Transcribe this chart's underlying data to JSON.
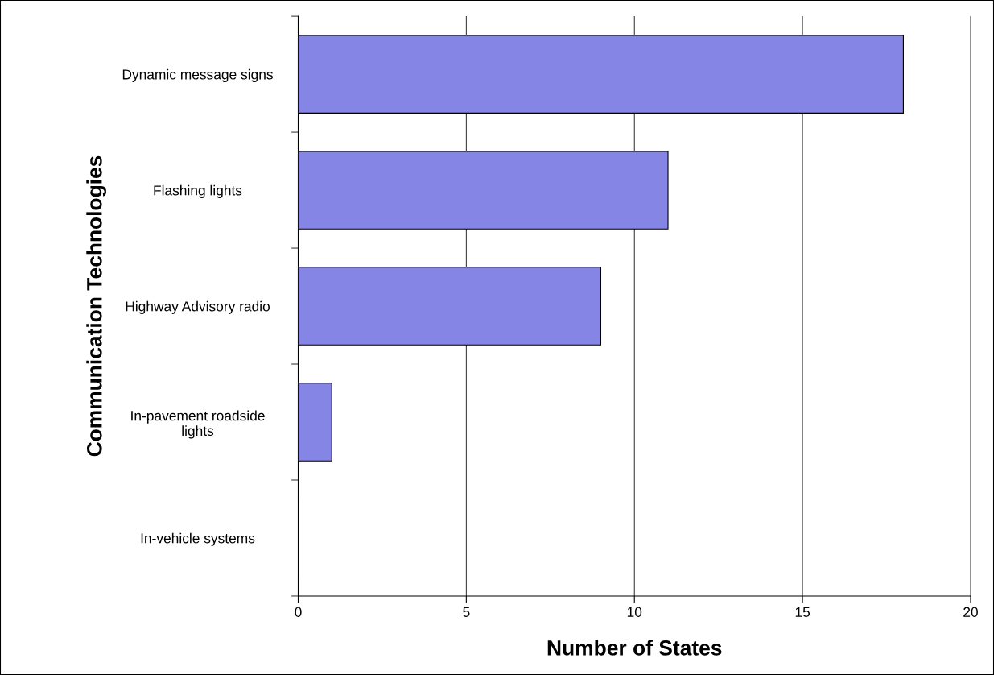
{
  "chart_data": {
    "type": "bar",
    "orientation": "horizontal",
    "xlabel": "Number of States",
    "ylabel": "Communication Technologies",
    "categories": [
      "Dynamic message signs",
      "Flashing lights",
      "Highway Advisory radio",
      "In-pavement roadside\nlights",
      "In-vehicle systems"
    ],
    "values": [
      18,
      11,
      9,
      1,
      0
    ],
    "color": "#8585e6",
    "xlim": [
      0,
      20
    ],
    "xticks": [
      0,
      5,
      10,
      15,
      20
    ],
    "grid": "x",
    "legend": false
  }
}
